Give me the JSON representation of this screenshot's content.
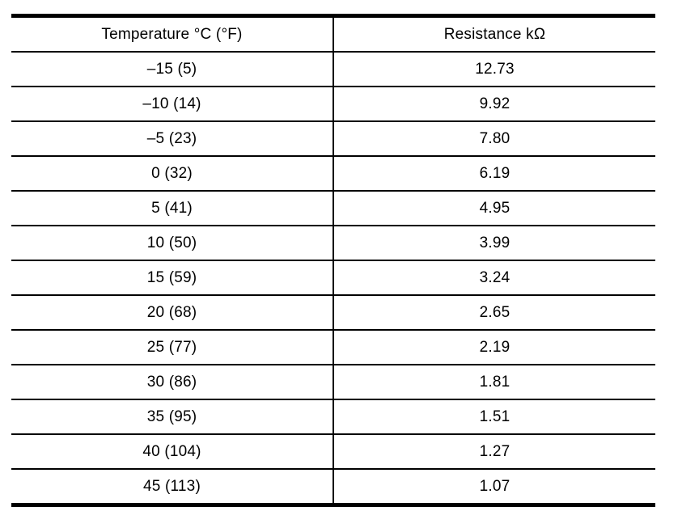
{
  "table": {
    "headers": [
      "Temperature °C (°F)",
      "Resistance kΩ"
    ],
    "rows": [
      {
        "temperature": "–15 (5)",
        "resistance": "12.73"
      },
      {
        "temperature": "–10 (14)",
        "resistance": "9.92"
      },
      {
        "temperature": "–5 (23)",
        "resistance": "7.80"
      },
      {
        "temperature": "0 (32)",
        "resistance": "6.19"
      },
      {
        "temperature": "5 (41)",
        "resistance": "4.95"
      },
      {
        "temperature": "10 (50)",
        "resistance": "3.99"
      },
      {
        "temperature": "15 (59)",
        "resistance": "3.24"
      },
      {
        "temperature": "20 (68)",
        "resistance": "2.65"
      },
      {
        "temperature": "25 (77)",
        "resistance": "2.19"
      },
      {
        "temperature": "30 (86)",
        "resistance": "1.81"
      },
      {
        "temperature": "35 (95)",
        "resistance": "1.51"
      },
      {
        "temperature": "40 (104)",
        "resistance": "1.27"
      },
      {
        "temperature": "45 (113)",
        "resistance": "1.07"
      }
    ],
    "colors": {
      "text": "#000000",
      "background": "#ffffff",
      "border": "#000000"
    }
  }
}
